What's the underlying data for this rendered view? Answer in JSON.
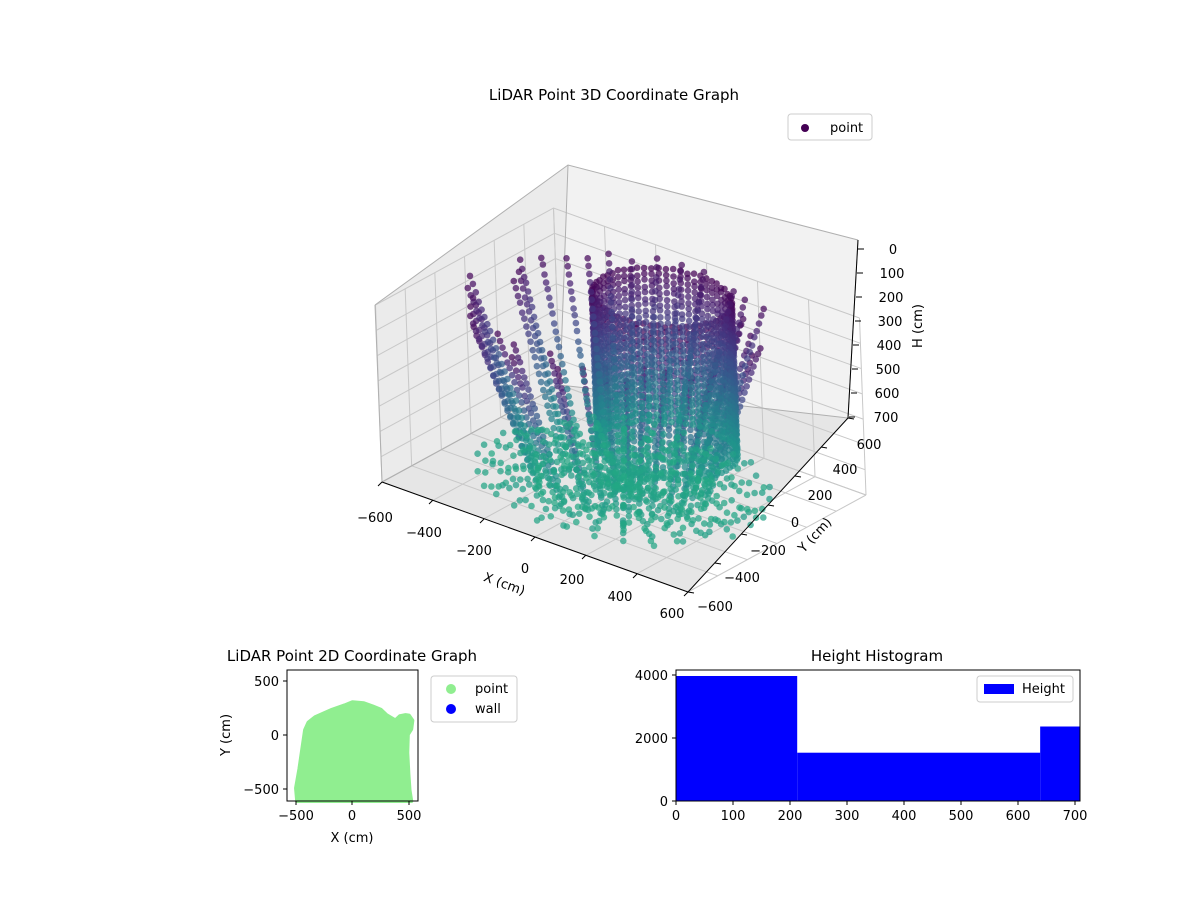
{
  "chart_data": [
    {
      "type": "scatter3d",
      "title": "LiDAR Point 3D Coordinate Graph",
      "xlabel": "X (cm)",
      "ylabel": "Y (cm)",
      "zlabel": "H (cm)",
      "xlim": [
        -600,
        600
      ],
      "ylim": [
        -600,
        600
      ],
      "zlim": [
        700,
        0
      ],
      "xticks": [
        "−600",
        "−400",
        "−200",
        "0",
        "200",
        "400",
        "600"
      ],
      "yticks": [
        "−600",
        "−400",
        "−200",
        "0",
        "200",
        "400",
        "600"
      ],
      "zticks": [
        "0",
        "100",
        "200",
        "300",
        "400",
        "500",
        "600",
        "700"
      ],
      "colormap": "viridis",
      "legend": {
        "position": "top-right",
        "entries": [
          {
            "label": "point",
            "color": "#440154"
          }
        ]
      },
      "grid": true
    },
    {
      "type": "scatter",
      "title": "LiDAR Point 2D Coordinate Graph",
      "xlabel": "X (cm)",
      "ylabel": "Y (cm)",
      "xlim": [
        -580,
        580
      ],
      "ylim": [
        -600,
        620
      ],
      "xticks": [
        "−500",
        "0",
        "500"
      ],
      "yticks": [
        "−500",
        "0",
        "500"
      ],
      "series": [
        {
          "name": "point",
          "color": "#90ee90"
        },
        {
          "name": "wall",
          "color": "#0000ff"
        }
      ],
      "outline": [
        [
          -490,
          -620
        ],
        [
          -500,
          -480
        ],
        [
          -470,
          -300
        ],
        [
          -445,
          -120
        ],
        [
          -420,
          60
        ],
        [
          -390,
          130
        ],
        [
          -330,
          180
        ],
        [
          -180,
          250
        ],
        [
          -70,
          290
        ],
        [
          0,
          320
        ],
        [
          100,
          310
        ],
        [
          180,
          280
        ],
        [
          250,
          250
        ],
        [
          300,
          200
        ],
        [
          380,
          150
        ],
        [
          420,
          190
        ],
        [
          470,
          200
        ],
        [
          500,
          195
        ],
        [
          530,
          150
        ],
        [
          520,
          70
        ],
        [
          490,
          20
        ],
        [
          485,
          -150
        ],
        [
          495,
          -350
        ],
        [
          505,
          -500
        ],
        [
          520,
          -620
        ]
      ],
      "legend": {
        "position": "outside-right"
      },
      "grid": false
    },
    {
      "type": "histogram",
      "title": "Height Histogram",
      "xlim": [
        0,
        710
      ],
      "ylim": [
        0,
        4150
      ],
      "xticks": [
        "0",
        "100",
        "200",
        "300",
        "400",
        "500",
        "600",
        "700"
      ],
      "yticks": [
        "0",
        "2000",
        "4000"
      ],
      "bins": [
        {
          "from": 0,
          "to": 213,
          "count": 3960
        },
        {
          "from": 213,
          "to": 640,
          "count": 1530
        },
        {
          "from": 640,
          "to": 710,
          "count": 2360
        }
      ],
      "color": "#0000ff",
      "legend": {
        "position": "top-right",
        "entries": [
          {
            "label": "Height",
            "color": "#0000ff"
          }
        ]
      },
      "grid": false
    }
  ]
}
